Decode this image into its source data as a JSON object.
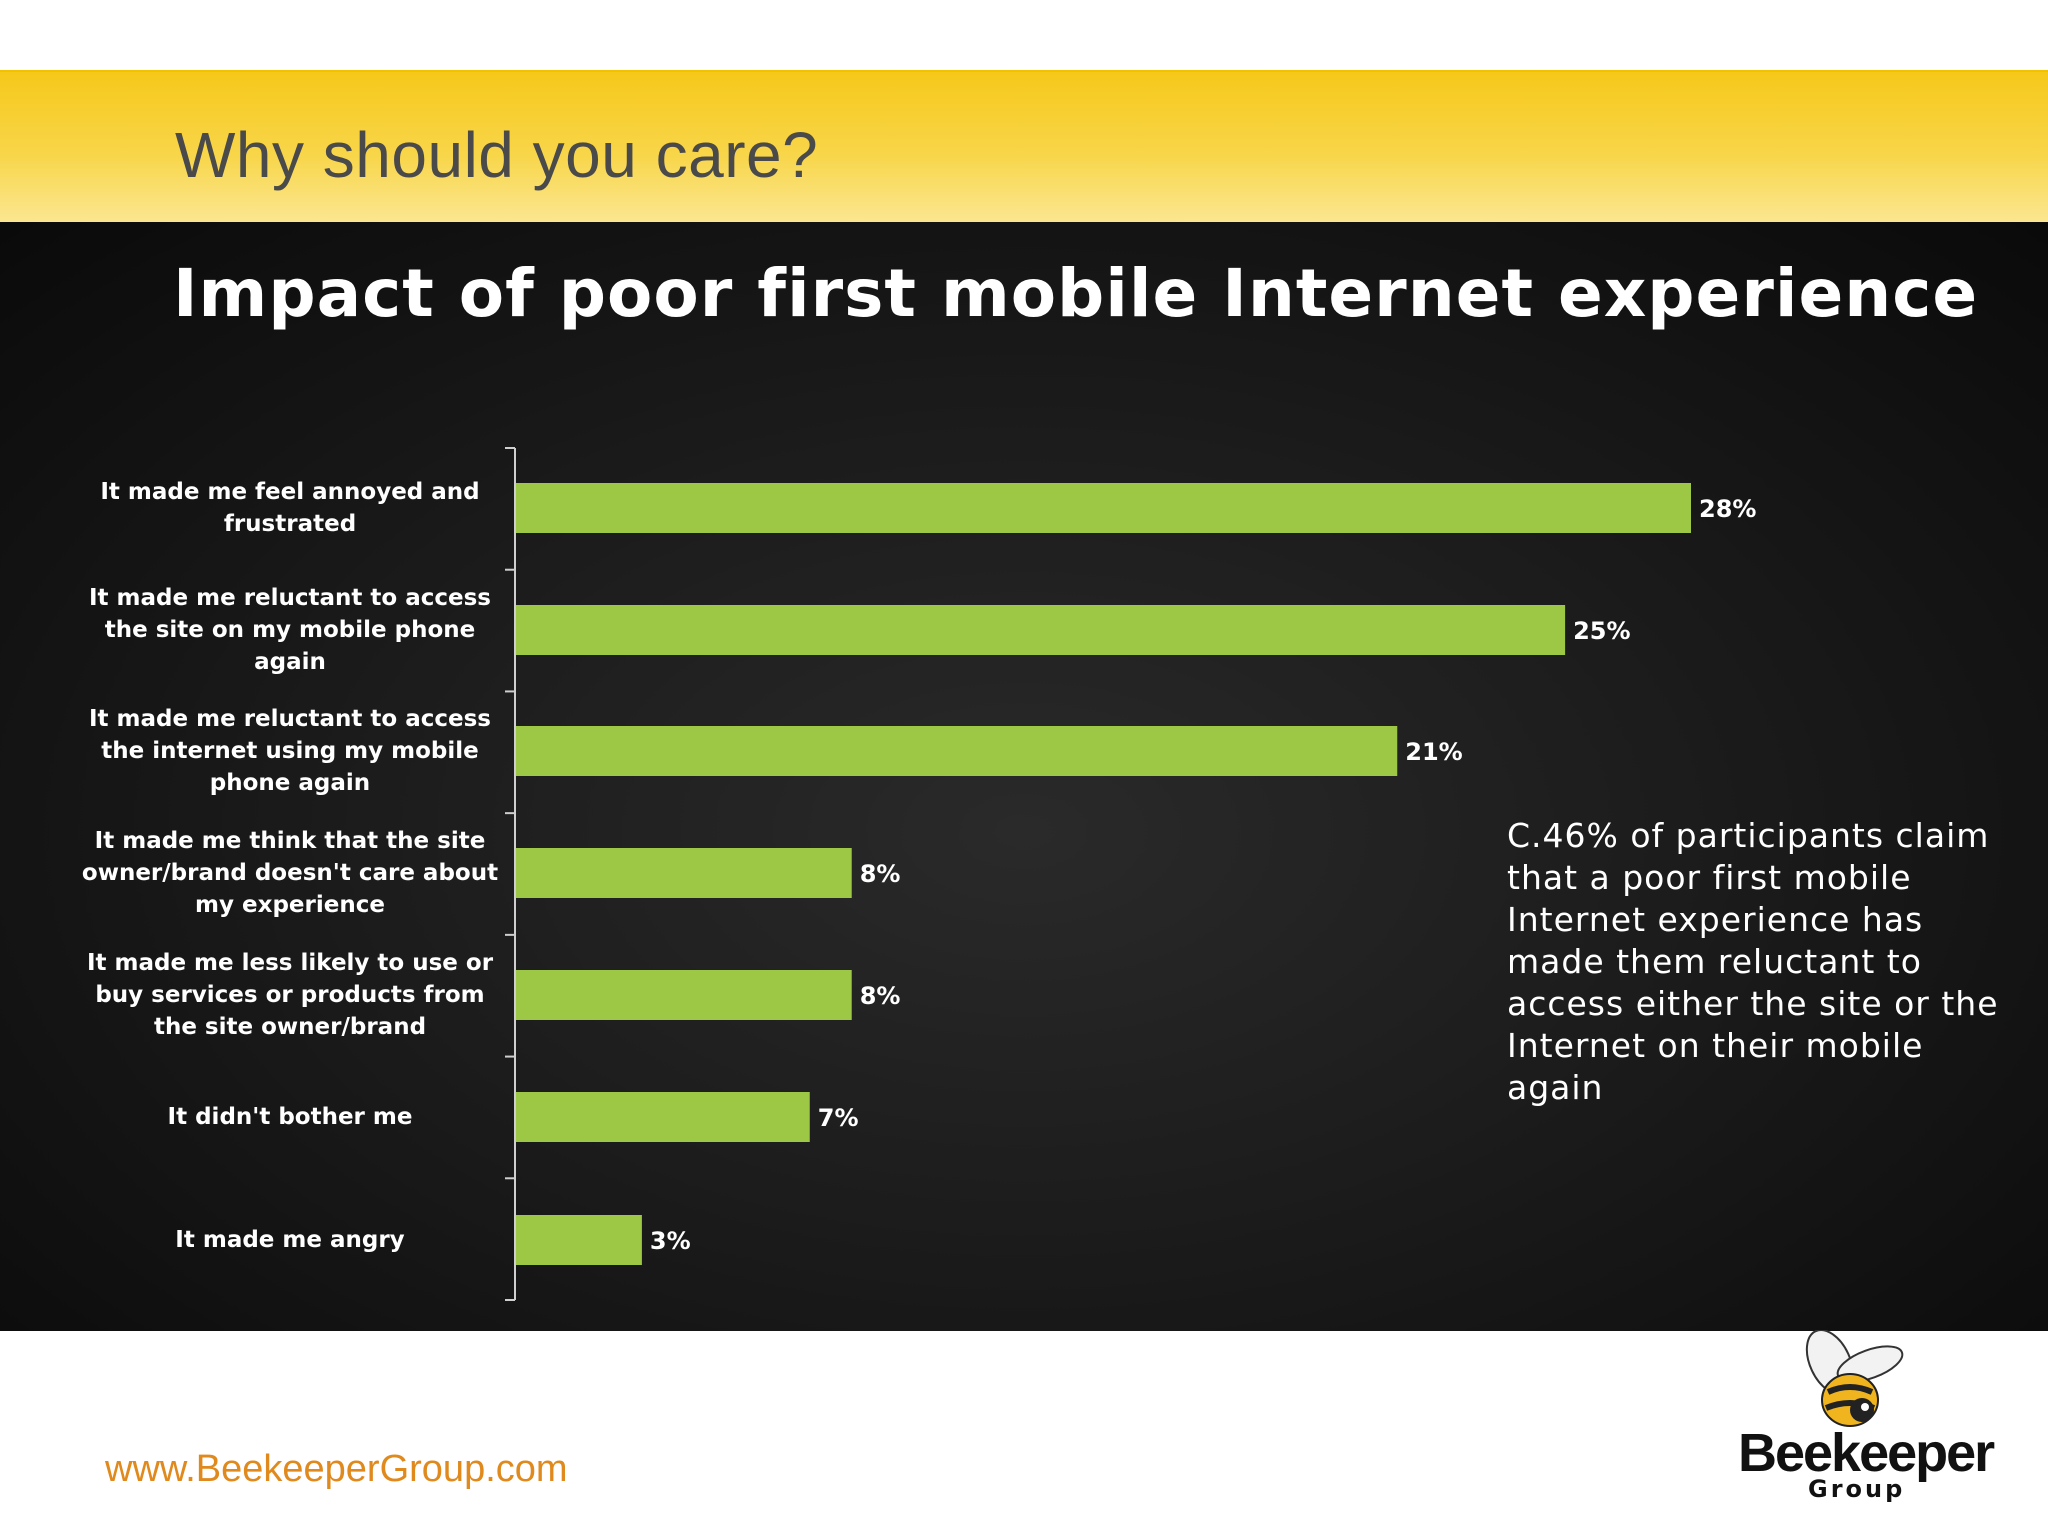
{
  "slide": {
    "title": "Why should you care?",
    "footer_url": "www.BeekeeperGroup.com",
    "logo": {
      "name": "Beekeeper",
      "sub": "Group"
    }
  },
  "chart_data": {
    "type": "bar",
    "orientation": "horizontal",
    "title": "Impact of poor first mobile Internet experience",
    "categories": [
      "It made me feel annoyed and frustrated",
      "It made me reluctant to access the site on my mobile phone again",
      "It made me reluctant to access the internet using my mobile phone again",
      "It made me think that the site owner/brand doesn't care about my experience",
      "It made me less likely to use or buy services or products from the site owner/brand",
      "It didn't bother me",
      "It made me angry"
    ],
    "values": [
      28,
      25,
      21,
      8,
      8,
      7,
      3
    ],
    "value_labels": [
      "28%",
      "25%",
      "21%",
      "8%",
      "8%",
      "7%",
      "3%"
    ],
    "xlim": [
      0,
      28
    ],
    "bar_color": "#9cc845",
    "grid": false
  },
  "callout": "C.46% of participants claim that a poor first mobile Internet experience has made them reluctant to access either the site or the Internet on their mobile again",
  "colors": {
    "header_band": "#f6c81a",
    "panel": "#111111",
    "bar": "#9cc845",
    "url": "#e08a1e"
  }
}
